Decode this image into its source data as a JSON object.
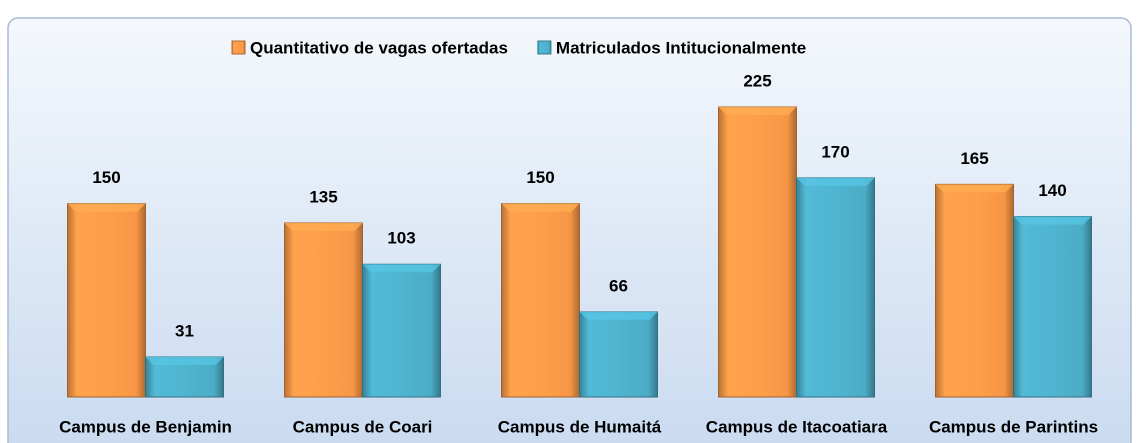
{
  "chart_data": {
    "type": "bar",
    "categories": [
      "Campus de Benjamin",
      "Campus de Coari",
      "Campus de Humaitá",
      "Campus de Itacoatiara",
      "Campus de Parintins"
    ],
    "series": [
      {
        "name": "Quantitativo de vagas ofertadas",
        "color": "#f79646",
        "values": [
          150,
          135,
          150,
          225,
          165
        ]
      },
      {
        "name": "Matriculados Intitucionalmente",
        "color": "#4bacc6",
        "values": [
          31,
          103,
          66,
          170,
          140
        ]
      }
    ],
    "legend": "top"
  }
}
